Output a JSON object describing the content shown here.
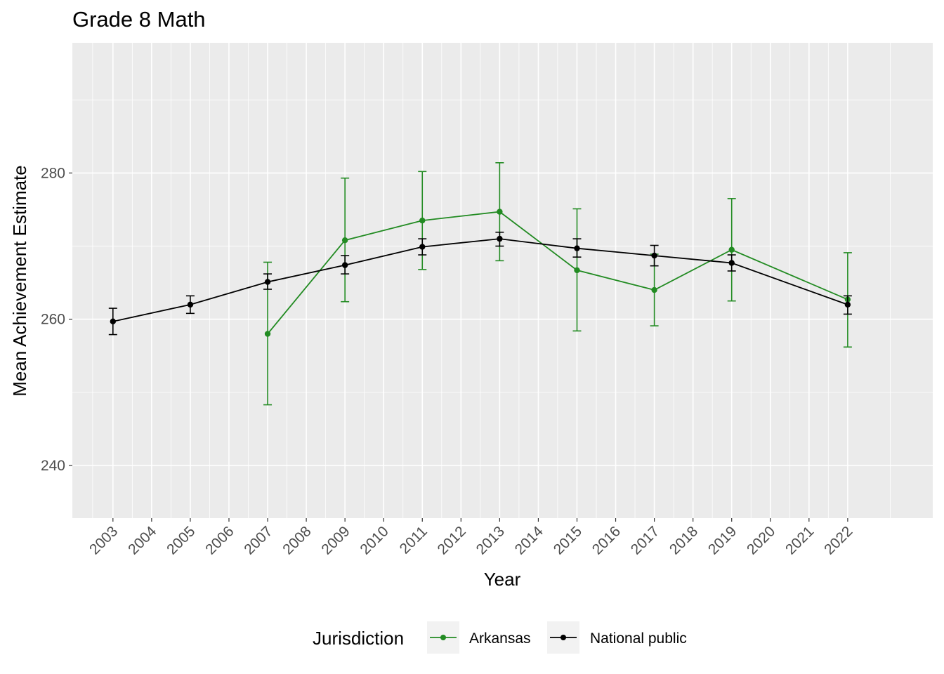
{
  "chart_data": {
    "type": "line",
    "title": "Grade 8 Math",
    "xlabel": "Year",
    "ylabel": "Mean Achievement Estimate",
    "x_ticks": [
      2003,
      2004,
      2005,
      2006,
      2007,
      2008,
      2009,
      2010,
      2011,
      2012,
      2013,
      2014,
      2015,
      2016,
      2017,
      2018,
      2019,
      2020,
      2021,
      2022
    ],
    "xlim": [
      2001.95,
      2024.2
    ],
    "ylim": [
      232.8,
      297.8
    ],
    "y_ticks": [
      240,
      260,
      280
    ],
    "grid": true,
    "legend": {
      "title": "Jurisdiction",
      "position": "bottom"
    },
    "series": [
      {
        "name": "Arkansas",
        "color": "#228b22",
        "points": [
          {
            "x": 2007,
            "y": 258.0,
            "lo": 248.3,
            "hi": 267.8
          },
          {
            "x": 2009,
            "y": 270.8,
            "lo": 262.4,
            "hi": 279.3
          },
          {
            "x": 2011,
            "y": 273.5,
            "lo": 266.8,
            "hi": 280.2
          },
          {
            "x": 2013,
            "y": 274.7,
            "lo": 268.0,
            "hi": 281.4
          },
          {
            "x": 2015,
            "y": 266.7,
            "lo": 258.4,
            "hi": 275.1
          },
          {
            "x": 2017,
            "y": 264.0,
            "lo": 259.1,
            "hi": 268.9
          },
          {
            "x": 2019,
            "y": 269.5,
            "lo": 262.5,
            "hi": 276.5
          },
          {
            "x": 2022,
            "y": 262.7,
            "lo": 256.2,
            "hi": 269.1
          }
        ]
      },
      {
        "name": "National public",
        "color": "#000000",
        "points": [
          {
            "x": 2003,
            "y": 259.7,
            "lo": 257.9,
            "hi": 261.5
          },
          {
            "x": 2005,
            "y": 262.0,
            "lo": 260.8,
            "hi": 263.2
          },
          {
            "x": 2007,
            "y": 265.1,
            "lo": 264.1,
            "hi": 266.2
          },
          {
            "x": 2009,
            "y": 267.4,
            "lo": 266.2,
            "hi": 268.7
          },
          {
            "x": 2011,
            "y": 269.9,
            "lo": 268.8,
            "hi": 271.0
          },
          {
            "x": 2013,
            "y": 271.0,
            "lo": 270.0,
            "hi": 271.9
          },
          {
            "x": 2015,
            "y": 269.7,
            "lo": 268.5,
            "hi": 271.0
          },
          {
            "x": 2017,
            "y": 268.7,
            "lo": 267.3,
            "hi": 270.1
          },
          {
            "x": 2019,
            "y": 267.7,
            "lo": 266.6,
            "hi": 268.8
          },
          {
            "x": 2022,
            "y": 262.0,
            "lo": 260.7,
            "hi": 263.2
          }
        ]
      }
    ]
  }
}
